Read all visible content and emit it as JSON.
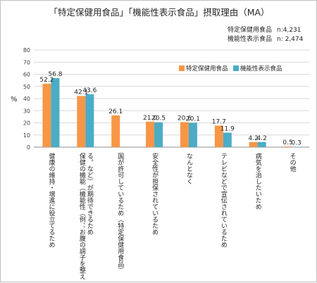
{
  "chart_data": {
    "type": "bar",
    "title": "「特定保健用食品」「機能性表示食品」摂取理由（MA）",
    "ylabel": "%",
    "ylim": [
      0,
      80
    ],
    "yticks": [
      "80",
      "70",
      "60",
      "50",
      "40",
      "30",
      "20",
      "10",
      "0"
    ],
    "legend_position": "top-right",
    "sample_sizes": [
      {
        "label": "特定保健用食品",
        "n": "n:4,231"
      },
      {
        "label": "機能性表示食品",
        "n": "n: 2,474"
      }
    ],
    "categories": [
      "健康の維持・増進に役立てるため",
      "保健の機能（機能性（例：お腹の調子を整える。など）が期待できるため",
      "国が許可しているため（特定保健用食品）",
      "安全性が担保されているため",
      "なんとなく",
      "テレビなどで宣伝されているため",
      "病気を治したいため",
      "その他"
    ],
    "series": [
      {
        "name": "特定保健用食品",
        "color": "#f79646",
        "values": [
          52.2,
          42.1,
          26.1,
          21.0,
          20.6,
          17.7,
          4.2,
          0.5
        ],
        "labels": [
          "52.2",
          "42.1",
          "26.1",
          "21.0",
          "20.6",
          "17.7",
          "4.2",
          "0.5"
        ]
      },
      {
        "name": "機能性表示食品",
        "color": "#4bacc6",
        "values": [
          56.8,
          43.6,
          null,
          20.5,
          20.1,
          11.9,
          4.2,
          0.3
        ],
        "labels": [
          "56.8",
          "43.6",
          "",
          "20.5",
          "20.1",
          "11.9",
          "4.2",
          "0.3"
        ]
      }
    ]
  }
}
